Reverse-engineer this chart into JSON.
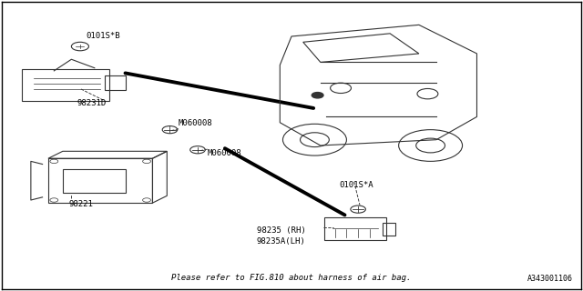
{
  "bg_color": "#ffffff",
  "border_color": "#000000",
  "fig_width": 6.4,
  "fig_height": 3.2,
  "dpi": 100,
  "footer_text": "Please refer to FIG.810 about harness of air bag.",
  "ref_code": "A343001106",
  "label_0101SB": "0101S*B",
  "label_98231D": "98231D",
  "label_M060008a": "M060008",
  "label_M060008b": "M060008",
  "label_98221": "98221",
  "label_0101SA": "0101S*A",
  "label_98235RH": "98235 (RH)",
  "label_98235ALH": "98235A(LH)",
  "thick_line_color": "#000000",
  "thin_line_color": "#333333",
  "lw_thick": 2.8,
  "lw_thin": 0.8,
  "font_size": 6.5,
  "ref_font_size": 6.0
}
